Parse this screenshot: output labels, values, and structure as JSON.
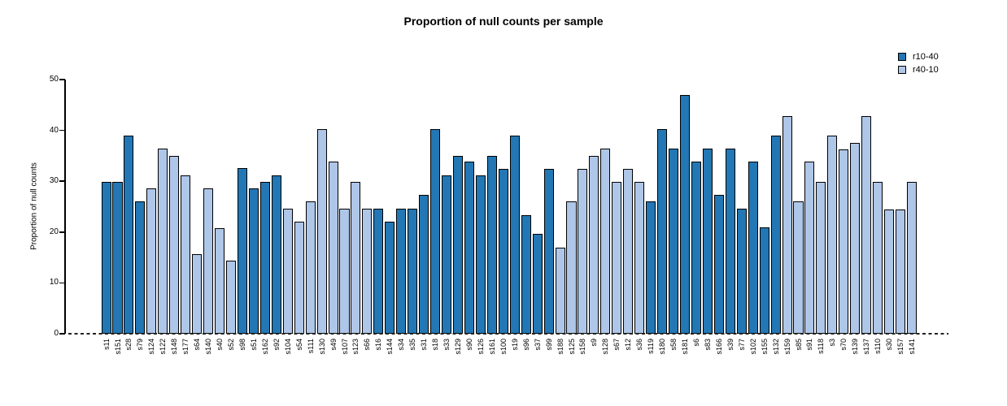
{
  "chart_data": {
    "type": "bar",
    "title": "Proportion of null counts per sample",
    "xlabel": "",
    "ylabel": "Proportion of null counts",
    "ylim": [
      0,
      50
    ],
    "yticks": [
      0,
      10,
      20,
      30,
      40,
      50
    ],
    "grid": false,
    "legend_position": "top-right",
    "zero_line_style": "dashed",
    "series_colors": {
      "r10-40": "#2277b4",
      "r40-10": "#aec6e8"
    },
    "legend": [
      {
        "label": "r10-40",
        "color": "#2277b4"
      },
      {
        "label": "r40-10",
        "color": "#aec6e8"
      }
    ],
    "bars": [
      {
        "label": "s11",
        "value": 29.9,
        "series": "r10-40"
      },
      {
        "label": "s151",
        "value": 29.9,
        "series": "r10-40"
      },
      {
        "label": "s28",
        "value": 39.0,
        "series": "r10-40"
      },
      {
        "label": "s79",
        "value": 26.0,
        "series": "r10-40"
      },
      {
        "label": "s124",
        "value": 28.6,
        "series": "r40-10"
      },
      {
        "label": "s122",
        "value": 36.4,
        "series": "r40-10"
      },
      {
        "label": "s148",
        "value": 35.0,
        "series": "r40-10"
      },
      {
        "label": "s177",
        "value": 31.2,
        "series": "r40-10"
      },
      {
        "label": "s64",
        "value": 15.6,
        "series": "r40-10"
      },
      {
        "label": "s140",
        "value": 28.6,
        "series": "r40-10"
      },
      {
        "label": "s40",
        "value": 20.8,
        "series": "r40-10"
      },
      {
        "label": "s52",
        "value": 14.3,
        "series": "r40-10"
      },
      {
        "label": "s98",
        "value": 32.6,
        "series": "r10-40"
      },
      {
        "label": "s51",
        "value": 28.6,
        "series": "r10-40"
      },
      {
        "label": "s162",
        "value": 29.9,
        "series": "r10-40"
      },
      {
        "label": "s92",
        "value": 31.2,
        "series": "r10-40"
      },
      {
        "label": "s104",
        "value": 24.6,
        "series": "r40-10"
      },
      {
        "label": "s54",
        "value": 22.1,
        "series": "r40-10"
      },
      {
        "label": "s111",
        "value": 26.1,
        "series": "r40-10"
      },
      {
        "label": "s130",
        "value": 40.2,
        "series": "r40-10"
      },
      {
        "label": "s49",
        "value": 33.8,
        "series": "r40-10"
      },
      {
        "label": "s107",
        "value": 24.6,
        "series": "r40-10"
      },
      {
        "label": "s123",
        "value": 29.9,
        "series": "r40-10"
      },
      {
        "label": "s66",
        "value": 24.6,
        "series": "r40-10"
      },
      {
        "label": "s16",
        "value": 24.6,
        "series": "r10-40"
      },
      {
        "label": "s144",
        "value": 22.1,
        "series": "r10-40"
      },
      {
        "label": "s34",
        "value": 24.6,
        "series": "r10-40"
      },
      {
        "label": "s35",
        "value": 24.6,
        "series": "r10-40"
      },
      {
        "label": "s31",
        "value": 27.3,
        "series": "r10-40"
      },
      {
        "label": "s18",
        "value": 40.2,
        "series": "r10-40"
      },
      {
        "label": "s33",
        "value": 31.2,
        "series": "r10-40"
      },
      {
        "label": "s129",
        "value": 35.0,
        "series": "r10-40"
      },
      {
        "label": "s90",
        "value": 33.8,
        "series": "r10-40"
      },
      {
        "label": "s126",
        "value": 31.2,
        "series": "r10-40"
      },
      {
        "label": "s161",
        "value": 35.0,
        "series": "r10-40"
      },
      {
        "label": "s100",
        "value": 32.5,
        "series": "r10-40"
      },
      {
        "label": "s19",
        "value": 39.0,
        "series": "r10-40"
      },
      {
        "label": "s96",
        "value": 23.4,
        "series": "r10-40"
      },
      {
        "label": "s37",
        "value": 19.6,
        "series": "r10-40"
      },
      {
        "label": "s99",
        "value": 32.5,
        "series": "r10-40"
      },
      {
        "label": "s188",
        "value": 16.9,
        "series": "r40-10"
      },
      {
        "label": "s125",
        "value": 26.0,
        "series": "r40-10"
      },
      {
        "label": "s158",
        "value": 32.5,
        "series": "r40-10"
      },
      {
        "label": "s9",
        "value": 35.0,
        "series": "r40-10"
      },
      {
        "label": "s128",
        "value": 36.4,
        "series": "r40-10"
      },
      {
        "label": "s67",
        "value": 29.9,
        "series": "r40-10"
      },
      {
        "label": "s12",
        "value": 32.5,
        "series": "r40-10"
      },
      {
        "label": "s36",
        "value": 29.8,
        "series": "r40-10"
      },
      {
        "label": "s119",
        "value": 26.0,
        "series": "r10-40"
      },
      {
        "label": "s180",
        "value": 40.2,
        "series": "r10-40"
      },
      {
        "label": "s58",
        "value": 36.4,
        "series": "r10-40"
      },
      {
        "label": "s181",
        "value": 46.9,
        "series": "r10-40"
      },
      {
        "label": "s6",
        "value": 33.8,
        "series": "r10-40"
      },
      {
        "label": "s83",
        "value": 36.4,
        "series": "r10-40"
      },
      {
        "label": "s166",
        "value": 27.3,
        "series": "r10-40"
      },
      {
        "label": "s39",
        "value": 36.4,
        "series": "r10-40"
      },
      {
        "label": "s77",
        "value": 24.6,
        "series": "r10-40"
      },
      {
        "label": "s102",
        "value": 33.8,
        "series": "r10-40"
      },
      {
        "label": "s155",
        "value": 20.9,
        "series": "r10-40"
      },
      {
        "label": "s132",
        "value": 38.9,
        "series": "r10-40"
      },
      {
        "label": "s159",
        "value": 42.8,
        "series": "r40-10"
      },
      {
        "label": "s85",
        "value": 26.0,
        "series": "r40-10"
      },
      {
        "label": "s91",
        "value": 33.8,
        "series": "r40-10"
      },
      {
        "label": "s118",
        "value": 29.8,
        "series": "r40-10"
      },
      {
        "label": "s3",
        "value": 38.9,
        "series": "r40-10"
      },
      {
        "label": "s70",
        "value": 36.3,
        "series": "r40-10"
      },
      {
        "label": "s139",
        "value": 37.6,
        "series": "r40-10"
      },
      {
        "label": "s137",
        "value": 42.8,
        "series": "r40-10"
      },
      {
        "label": "s110",
        "value": 29.8,
        "series": "r40-10"
      },
      {
        "label": "s30",
        "value": 24.5,
        "series": "r40-10"
      },
      {
        "label": "s157",
        "value": 24.5,
        "series": "r40-10"
      },
      {
        "label": "s141",
        "value": 29.8,
        "series": "r40-10"
      }
    ]
  }
}
